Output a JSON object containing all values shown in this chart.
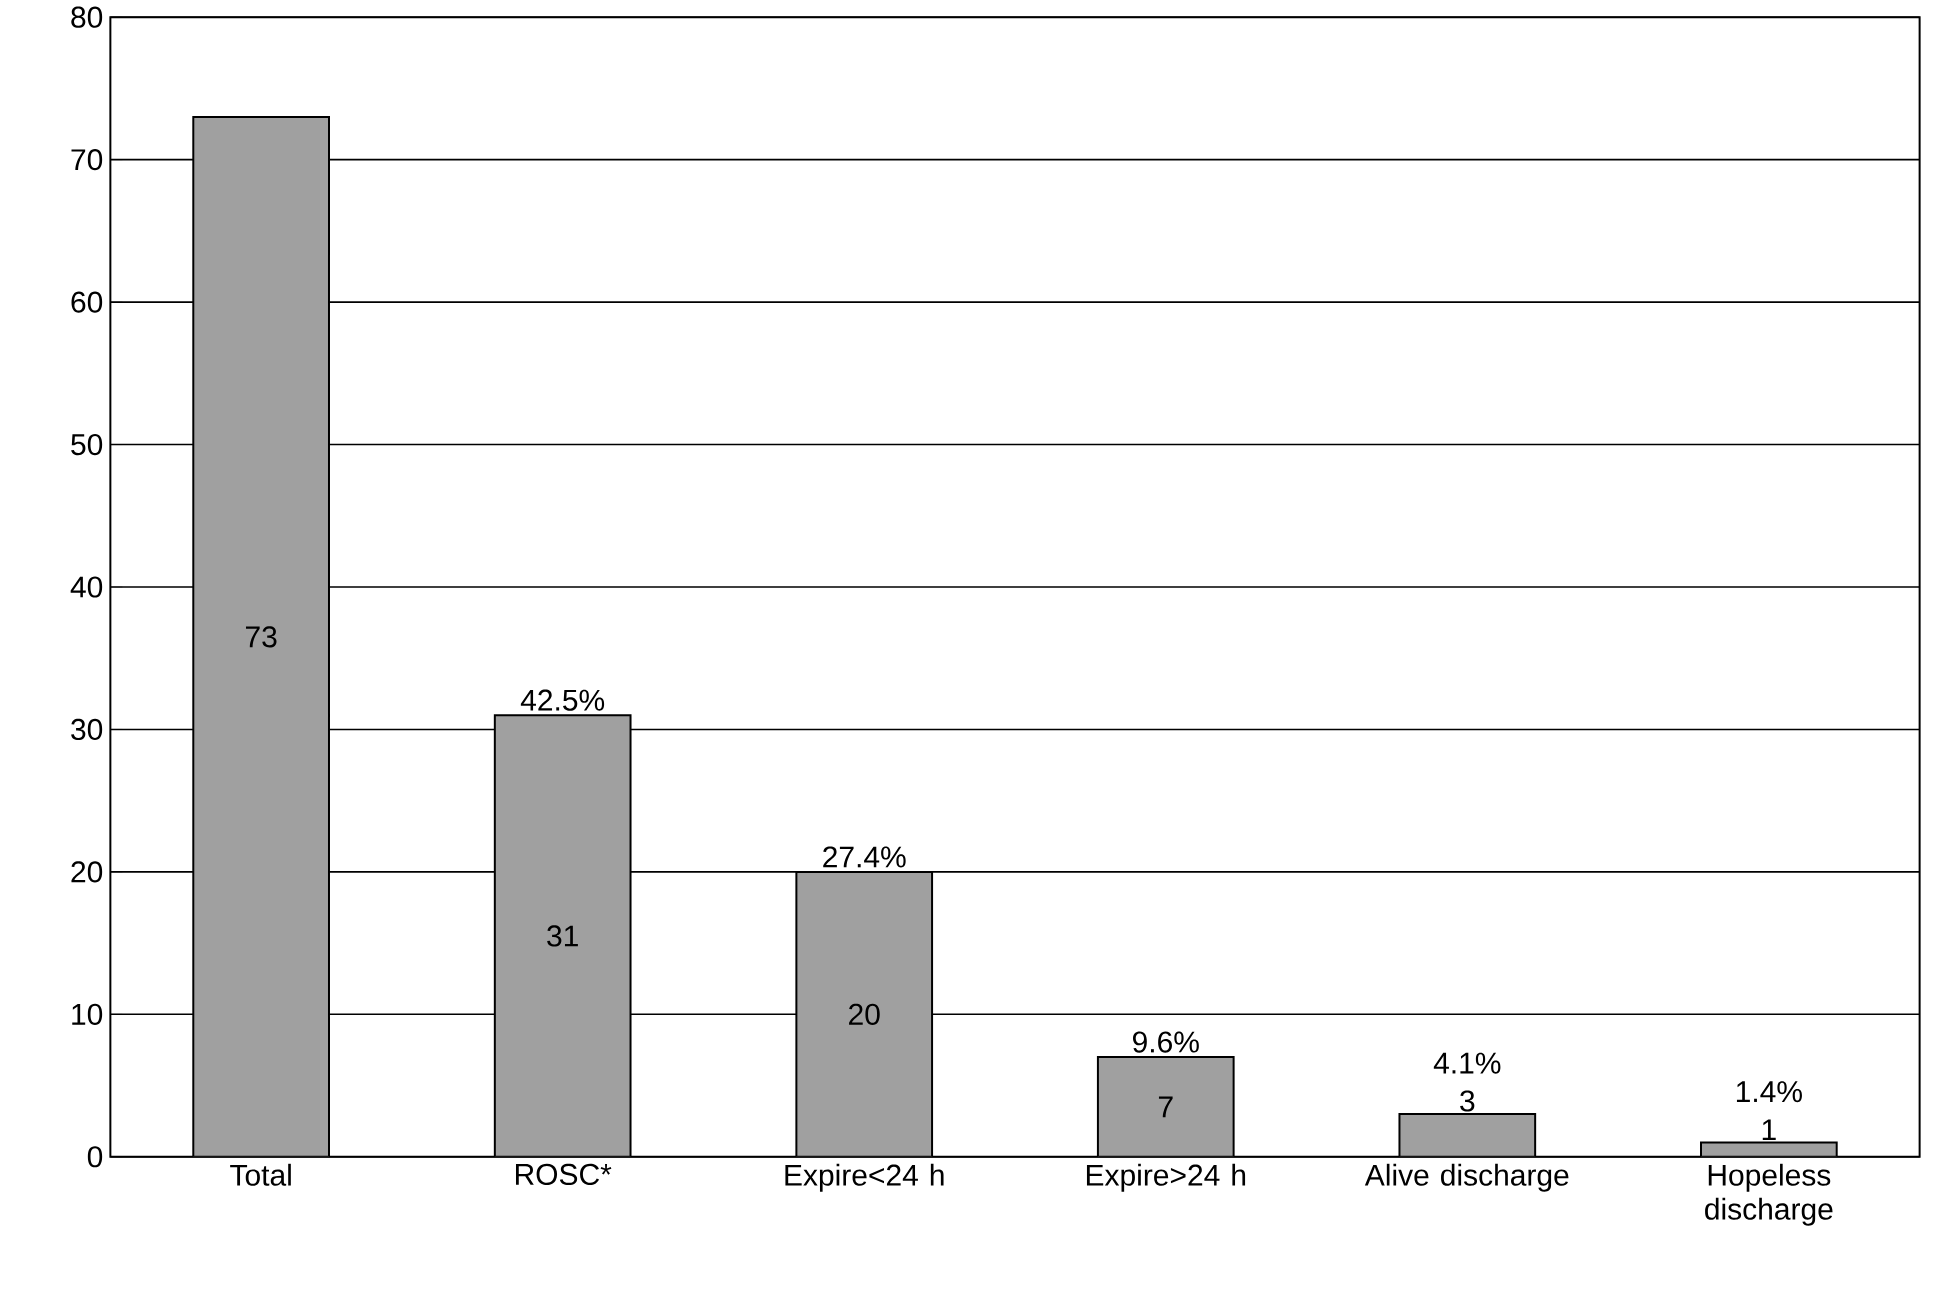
{
  "chart_data": {
    "type": "bar",
    "categories": [
      "Total",
      "ROSC*",
      "Expire<24 h",
      "Expire>24 h",
      "Alive discharge",
      "Hopeless discharge"
    ],
    "values": [
      73,
      31,
      20,
      7,
      3,
      1
    ],
    "color": "#a0a0a0",
    "data_labels": true,
    "ylim": [
      0,
      80
    ],
    "yticks": [
      0,
      10,
      20,
      30,
      40,
      50,
      60,
      70,
      80
    ],
    "grid": "y",
    "annotations": [
      {
        "text": "42.5%",
        "x": "ROSC*",
        "y": 31
      },
      {
        "text": "27.4%",
        "x": "Expire<24 h",
        "y": 20
      },
      {
        "text": "9.6%",
        "x": "Expire>24 h",
        "y": 7
      },
      {
        "text": "4.1%",
        "x": "Alive discharge",
        "y": 3
      },
      {
        "text": "1.4%",
        "x": "Hopeless discharge",
        "y": 1
      }
    ]
  }
}
